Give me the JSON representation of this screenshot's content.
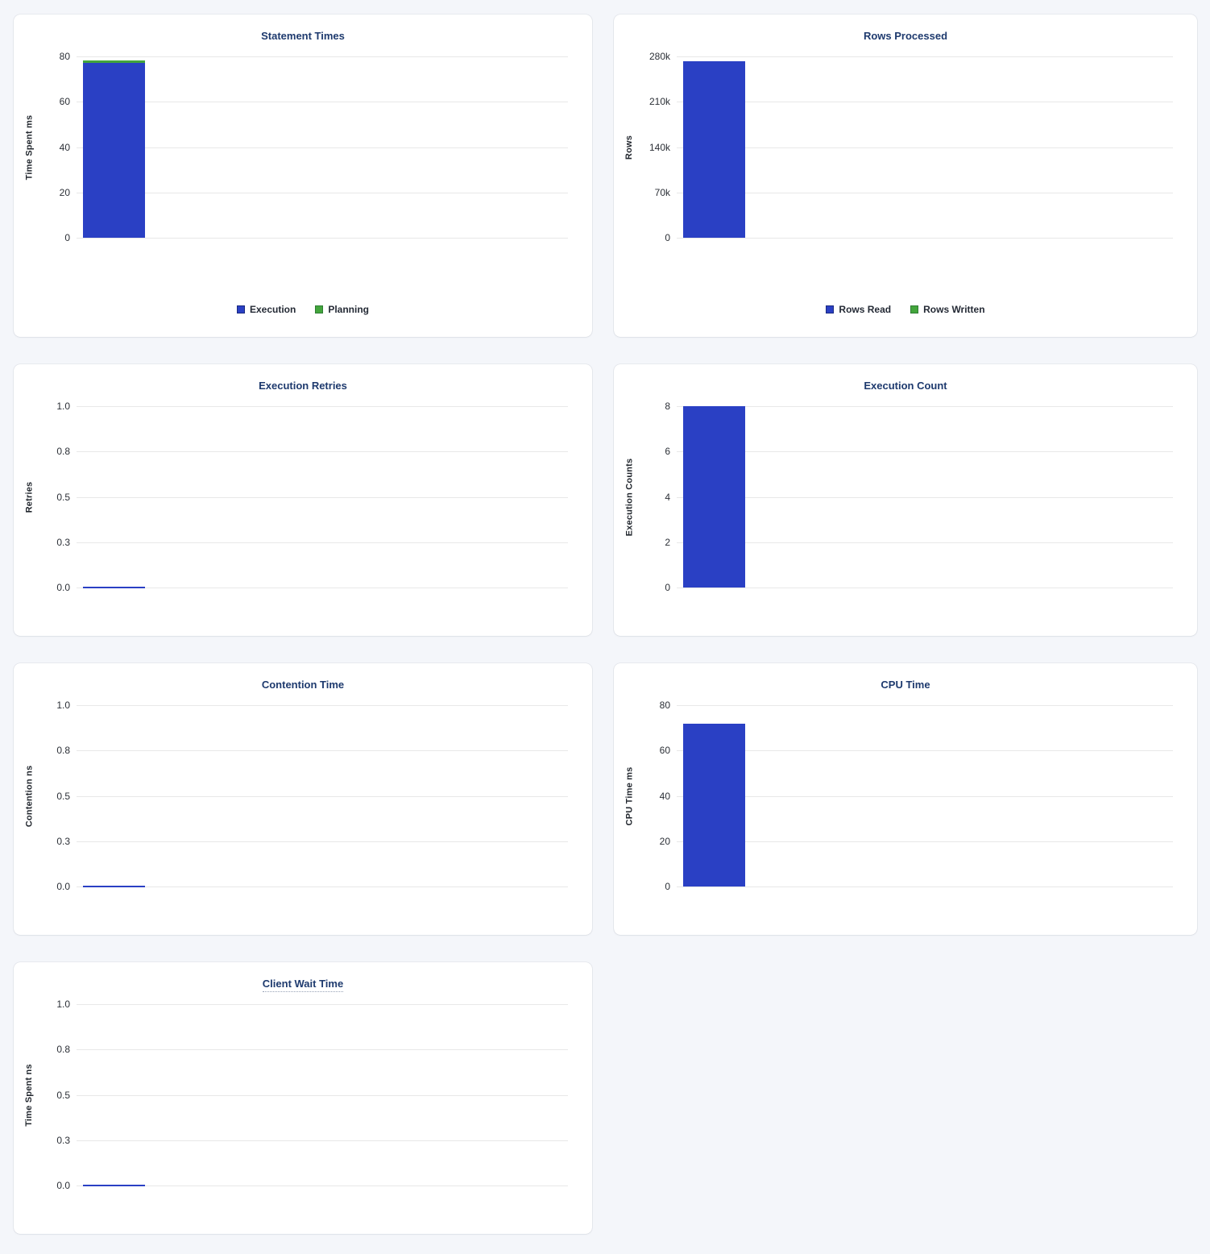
{
  "colors": {
    "blue": "#2a40c4",
    "green": "#43a53c",
    "blue_border": "#1a2a80",
    "green_border": "#2f7d33"
  },
  "chart_data": [
    {
      "type": "bar",
      "stacked": true,
      "title": "Statement Times",
      "ylabel": "Time Spent ms",
      "ymax": 80,
      "ylim": [
        0,
        80
      ],
      "ytick_labels": [
        "0",
        "20",
        "40",
        "60",
        "80"
      ],
      "legend": true,
      "legend_position": "bottom",
      "series": [
        {
          "name": "Execution",
          "value": 77,
          "color": "blue"
        },
        {
          "name": "Planning",
          "value": 1.2,
          "color": "green"
        }
      ]
    },
    {
      "type": "bar",
      "stacked": true,
      "title": "Rows Processed",
      "ylabel": "Rows",
      "ymax": 280000,
      "ylim": [
        0,
        280000
      ],
      "ytick_labels": [
        "0",
        "70k",
        "140k",
        "210k",
        "280k"
      ],
      "legend": true,
      "legend_position": "bottom",
      "series": [
        {
          "name": "Rows Read",
          "value": 272000,
          "color": "blue"
        },
        {
          "name": "Rows Written",
          "value": 0,
          "color": "green"
        }
      ]
    },
    {
      "type": "bar",
      "stacked": false,
      "title": "Execution Retries",
      "ylabel": "Retries",
      "ymax": 1,
      "ylim": [
        0,
        1
      ],
      "ytick_labels": [
        "0.0",
        "0.3",
        "0.5",
        "0.8",
        "1.0"
      ],
      "legend": false,
      "series": [
        {
          "name": "Retries",
          "value": 0,
          "color": "blue"
        }
      ]
    },
    {
      "type": "bar",
      "stacked": false,
      "title": "Execution Count",
      "ylabel": "Execution Counts",
      "ymax": 8,
      "ylim": [
        0,
        8
      ],
      "ytick_labels": [
        "0",
        "2",
        "4",
        "6",
        "8"
      ],
      "legend": false,
      "series": [
        {
          "name": "Execution Count",
          "value": 8,
          "color": "blue"
        }
      ]
    },
    {
      "type": "bar",
      "stacked": false,
      "title": "Contention Time",
      "ylabel": "Contention ns",
      "ymax": 1,
      "ylim": [
        0,
        1
      ],
      "ytick_labels": [
        "0.0",
        "0.3",
        "0.5",
        "0.8",
        "1.0"
      ],
      "legend": false,
      "series": [
        {
          "name": "Contention",
          "value": 0,
          "color": "blue"
        }
      ]
    },
    {
      "type": "bar",
      "stacked": false,
      "title": "CPU Time",
      "ylabel": "CPU Time ms",
      "ymax": 80,
      "ylim": [
        0,
        80
      ],
      "ytick_labels": [
        "0",
        "20",
        "40",
        "60",
        "80"
      ],
      "legend": false,
      "series": [
        {
          "name": "CPU Time",
          "value": 72,
          "color": "blue"
        }
      ]
    },
    {
      "type": "bar",
      "stacked": false,
      "title": "Client Wait Time",
      "title_tooltip_underline": true,
      "ylabel": "Time Spent ns",
      "ymax": 1,
      "ylim": [
        0,
        1
      ],
      "ytick_labels": [
        "0.0",
        "0.3",
        "0.5",
        "0.8",
        "1.0"
      ],
      "legend": false,
      "series": [
        {
          "name": "Client Wait",
          "value": 0,
          "color": "blue"
        }
      ]
    }
  ]
}
